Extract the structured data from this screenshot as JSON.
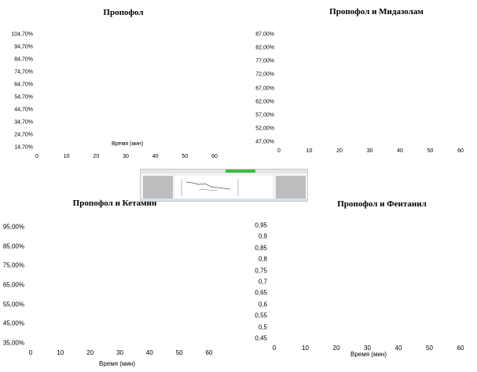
{
  "charts": [
    {
      "id": "c1",
      "title": "Пропофол",
      "y_ticks": [
        "104,70%",
        "94,70%",
        "84,70%",
        "74,70%",
        "64,70%",
        "54,70%",
        "44,70%",
        "34,70%",
        "24,70%",
        "14,70%"
      ],
      "x_ticks": [
        "0",
        "10",
        "20",
        "30",
        "40",
        "50",
        "60"
      ],
      "xlabel": "Время (мин)",
      "ylabel": ""
    },
    {
      "id": "c2",
      "title": "Пропофол и Мидазолам",
      "y_ticks": [
        "87,00%",
        "82,00%",
        "77,00%",
        "72,00%",
        "67,00%",
        "62,00%",
        "57,00%",
        "52,00%",
        "47,00%"
      ],
      "x_ticks": [
        "0",
        "10",
        "20",
        "30",
        "40",
        "50",
        "60"
      ],
      "xlabel": "",
      "ylabel": ""
    },
    {
      "id": "c3",
      "title": "Пропофол и Кетамин",
      "y_ticks": [
        "95,00%",
        "85,00%",
        "75,00%",
        "65,00%",
        "55,00%",
        "45,00%",
        "35,00%"
      ],
      "x_ticks": [
        "0",
        "10",
        "20",
        "30",
        "40",
        "50",
        "60"
      ],
      "xlabel": "Время (мин)",
      "ylabel": ""
    },
    {
      "id": "c4",
      "title": "Пропофол и Фентанил",
      "y_ticks": [
        "0,95",
        "0,9",
        "0,85",
        "0,8",
        "0,75",
        "0,7",
        "0,65",
        "0,6",
        "0,55",
        "0,5",
        "0,45"
      ],
      "x_ticks": [
        "0",
        "10",
        "20",
        "30",
        "40",
        "50",
        "60"
      ],
      "xlabel": "Время (мин)",
      "ylabel": ""
    }
  ],
  "chart_data": [
    {
      "type": "line",
      "title": "Пропофол",
      "xlabel": "Время (мин)",
      "ylabel": "",
      "xlim": [
        0,
        60
      ],
      "ylim": [
        14.7,
        104.7
      ],
      "y_unit": "%",
      "grid": false,
      "series": []
    },
    {
      "type": "line",
      "title": "Пропофол и Мидазолам",
      "xlabel": "",
      "ylabel": "",
      "xlim": [
        0,
        60
      ],
      "ylim": [
        47,
        87
      ],
      "y_unit": "%",
      "grid": false,
      "series": []
    },
    {
      "type": "line",
      "title": "Пропофол и Кетамин",
      "xlabel": "Время (мин)",
      "ylabel": "",
      "xlim": [
        0,
        60
      ],
      "ylim": [
        35,
        95
      ],
      "y_unit": "%",
      "grid": false,
      "series": []
    },
    {
      "type": "line",
      "title": "Пропофол и Фентанил",
      "xlabel": "Время (мин)",
      "ylabel": "",
      "xlim": [
        0,
        60
      ],
      "ylim": [
        0.45,
        0.95
      ],
      "grid": false,
      "series": []
    }
  ],
  "thumbnail": {
    "colors": {
      "frame": "#f4f4f4",
      "pane": "#bdbdbd",
      "accent": "#3fbf3f"
    }
  }
}
